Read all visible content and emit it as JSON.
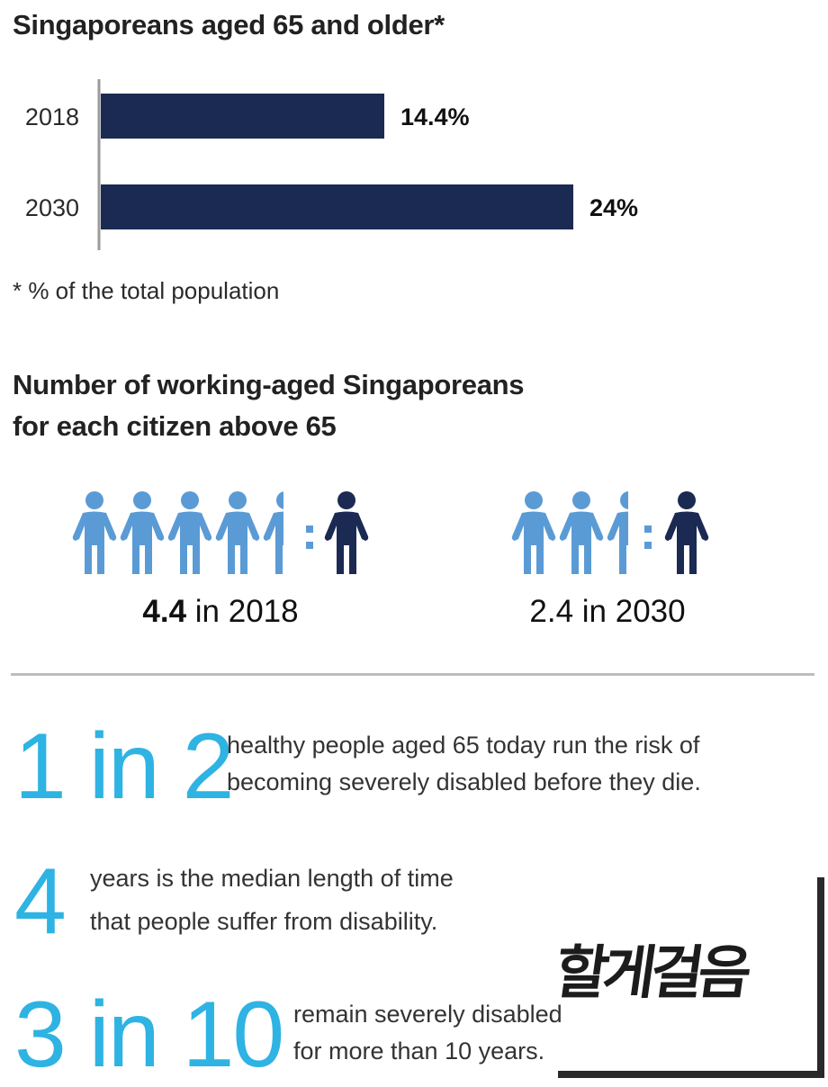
{
  "section1": {
    "title": "Singaporeans aged 65 and older*",
    "footnote": "* % of the total population"
  },
  "chart_data": {
    "type": "bar",
    "orientation": "horizontal",
    "title": "Singaporeans aged 65 and older*",
    "categories": [
      "2018",
      "2030"
    ],
    "values": [
      14.4,
      24
    ],
    "value_labels": [
      "14.4%",
      "24%"
    ],
    "unit": "%",
    "xlim": [
      0,
      24
    ],
    "grid": false,
    "legend": "none",
    "colors": {
      "bar": "#1b2a52",
      "axis": "#9a9a9a"
    }
  },
  "section2": {
    "title_line1": "Number of working-aged Singaporeans",
    "title_line2": "for each citizen above 65",
    "groups": [
      {
        "ratio": 4.4,
        "ratio_bold": "4.4",
        "ratio_rest": " in 2018"
      },
      {
        "ratio": 2.4,
        "ratio_bold": "",
        "ratio_rest": "2.4 in 2030"
      }
    ],
    "colors": {
      "working": "#5b9bd5",
      "elderly": "#1b2a52",
      "colon": "#5b9bd5"
    },
    "icons": {
      "working": "person-icon",
      "elderly": "person-icon"
    }
  },
  "stats": [
    {
      "big": "1 in 2",
      "line1": "healthy people aged 65 today run the risk of",
      "line2": "becoming severely disabled before they die."
    },
    {
      "big": "4",
      "line1": "years is the median length of time",
      "line2": "that people suffer from disability."
    },
    {
      "big": "3 in 10",
      "line1": "remain severely disabled",
      "line2": "for more than 10 years."
    }
  ],
  "accent_color": "#2eb3e3",
  "watermark": {
    "text": "할게걸음"
  }
}
